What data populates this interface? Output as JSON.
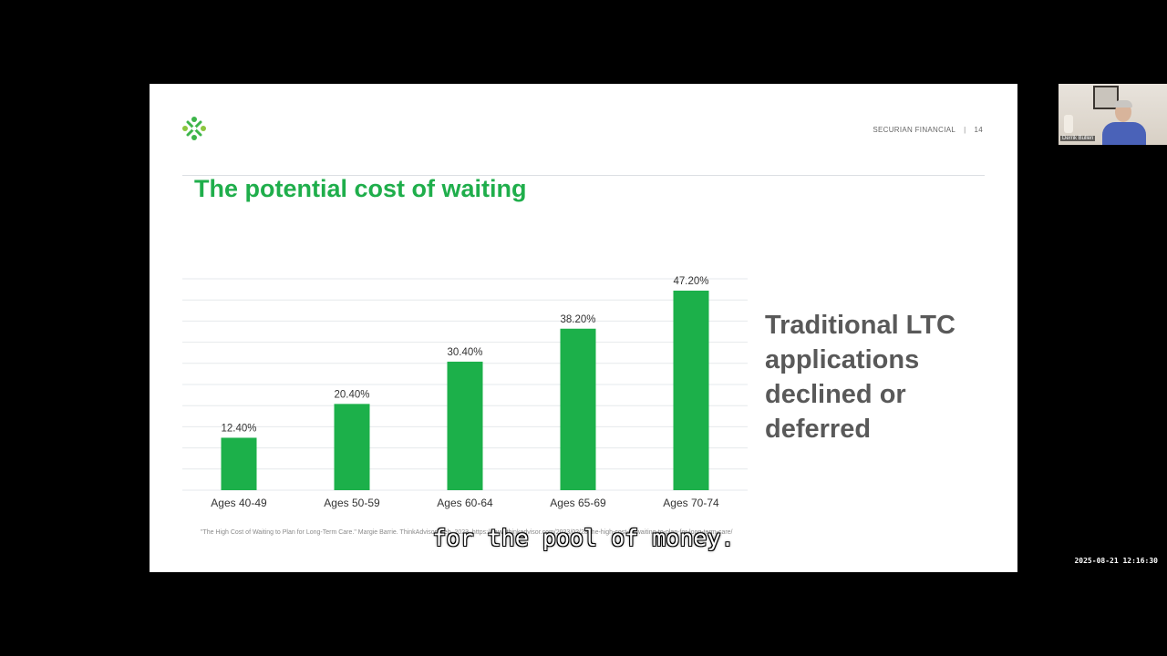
{
  "slide": {
    "header": {
      "company": "SECURIAN FINANCIAL",
      "page_number": "14"
    },
    "title": "The potential cost of waiting",
    "side_text": "Traditional LTC applications declined or deferred",
    "source": "\"The High Cost of Waiting to Plan for Long-Term Care.\" Margie Barrie. ThinkAdvisor. Feb. 2023. https://www.thinkadvisor.com/2023/02/28/the-high-cost-of-waiting-to-plan-for-long-term-care/",
    "logo_icon": "securian-logo-icon",
    "accent_color": "#1fae4b"
  },
  "chart_data": {
    "type": "bar",
    "categories": [
      "Ages 40-49",
      "Ages 50-59",
      "Ages 60-64",
      "Ages 65-69",
      "Ages 70-74"
    ],
    "values": [
      12.4,
      20.4,
      30.4,
      38.2,
      47.2
    ],
    "data_labels": [
      "12.40%",
      "20.40%",
      "30.40%",
      "38.20%",
      "47.20%"
    ],
    "title": "",
    "xlabel": "",
    "ylabel": "",
    "ylim": [
      0,
      50
    ],
    "grid": true,
    "bar_color": "#1cb04a"
  },
  "caption": "for the pool of money.",
  "participant": {
    "name": "Derrik Bullen"
  },
  "timestamp": "2025-08-21 12:16:30"
}
